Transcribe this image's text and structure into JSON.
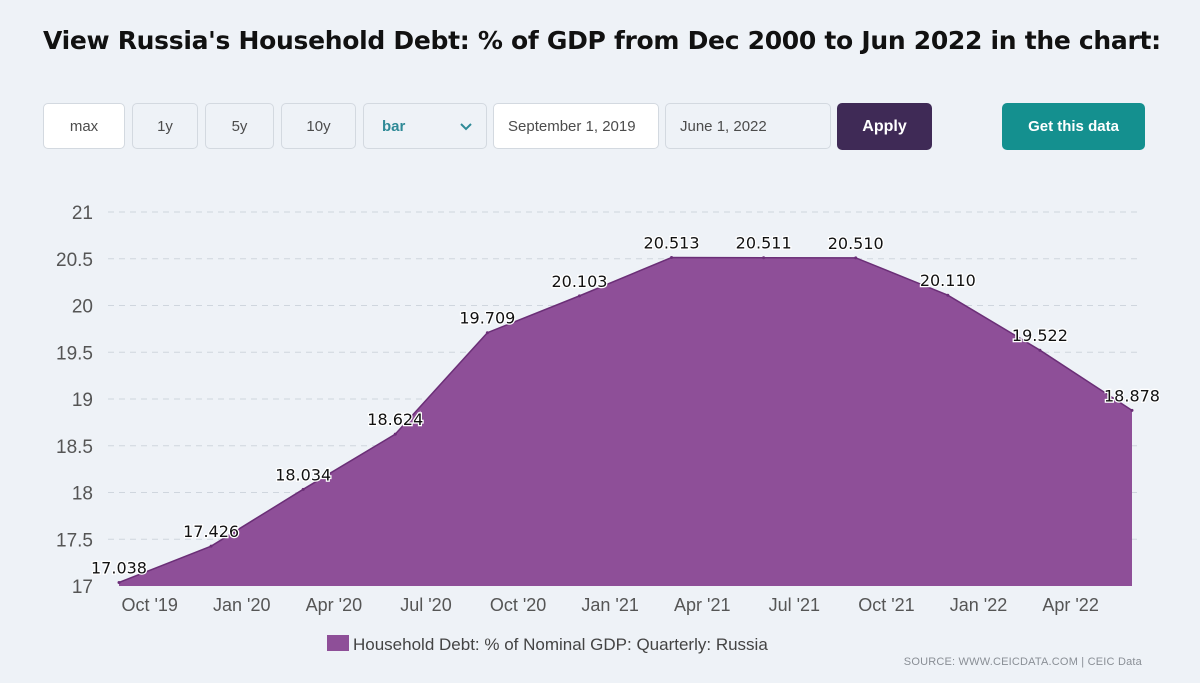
{
  "title": "View Russia's Household Debt: % of GDP from Dec 2000 to Jun 2022 in the chart:",
  "controls": {
    "range_buttons": [
      "max",
      "1y",
      "5y",
      "10y"
    ],
    "chart_type": "bar",
    "start_date": "September 1, 2019",
    "end_date": "June 1, 2022",
    "apply_label": "Apply",
    "get_data_label": "Get this data"
  },
  "source": "SOURCE: WWW.CEICDATA.COM | CEIC Data",
  "colors": {
    "area": "#8e4f98",
    "area_stroke": "#6b2f77",
    "apply": "#3f2a56",
    "get_data": "#14908f"
  },
  "chart_data": {
    "type": "area",
    "x": [
      "Sep 2019",
      "Dec 2019",
      "Mar 2020",
      "Jun 2020",
      "Sep 2020",
      "Dec 2020",
      "Mar 2021",
      "Jun 2021",
      "Sep 2021",
      "Dec 2021",
      "Mar 2022",
      "Jun 2022"
    ],
    "series": [
      {
        "name": "Household Debt: % of Nominal GDP: Quarterly: Russia",
        "values": [
          17.038,
          17.426,
          18.034,
          18.624,
          19.709,
          20.103,
          20.513,
          20.511,
          20.51,
          20.11,
          19.522,
          18.878
        ]
      }
    ],
    "x_tick_labels": [
      "Oct '19",
      "Jan '20",
      "Apr '20",
      "Jul '20",
      "Oct '20",
      "Jan '21",
      "Apr '21",
      "Jul '21",
      "Oct '21",
      "Jan '22",
      "Apr '22"
    ],
    "y_ticks": [
      17,
      17.5,
      18,
      18.5,
      19,
      19.5,
      20,
      20.5,
      21
    ],
    "ylim": [
      17,
      21
    ],
    "grid": true,
    "legend_position": "bottom"
  }
}
